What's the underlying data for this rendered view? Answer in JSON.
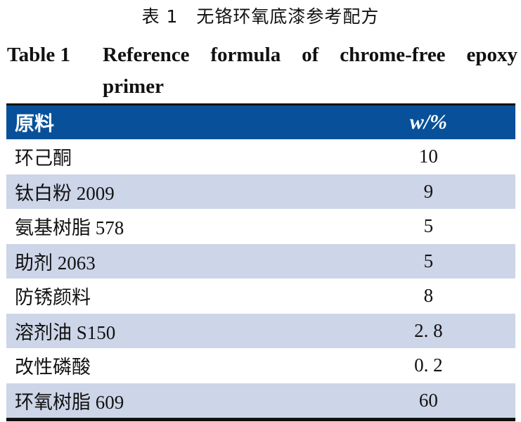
{
  "caption_cn": "表 1　无铬环氧底漆参考配方",
  "caption_en_label": "Table 1",
  "caption_en_text": "Reference formula of chrome-free epoxy primer",
  "table": {
    "headers": [
      "原料",
      "w/%"
    ],
    "rows": [
      [
        "环己酮",
        "10"
      ],
      [
        "钛白粉 2009",
        "9"
      ],
      [
        "氨基树脂 578",
        "5"
      ],
      [
        "助剂 2063",
        "5"
      ],
      [
        "防锈颜料",
        "8"
      ],
      [
        "溶剂油 S150",
        "2. 8"
      ],
      [
        "改性磷酸",
        "0. 2"
      ],
      [
        "环氧树脂 609",
        "60"
      ]
    ],
    "header_color": "#08519a",
    "stripe_color": "#cdd5e8"
  }
}
